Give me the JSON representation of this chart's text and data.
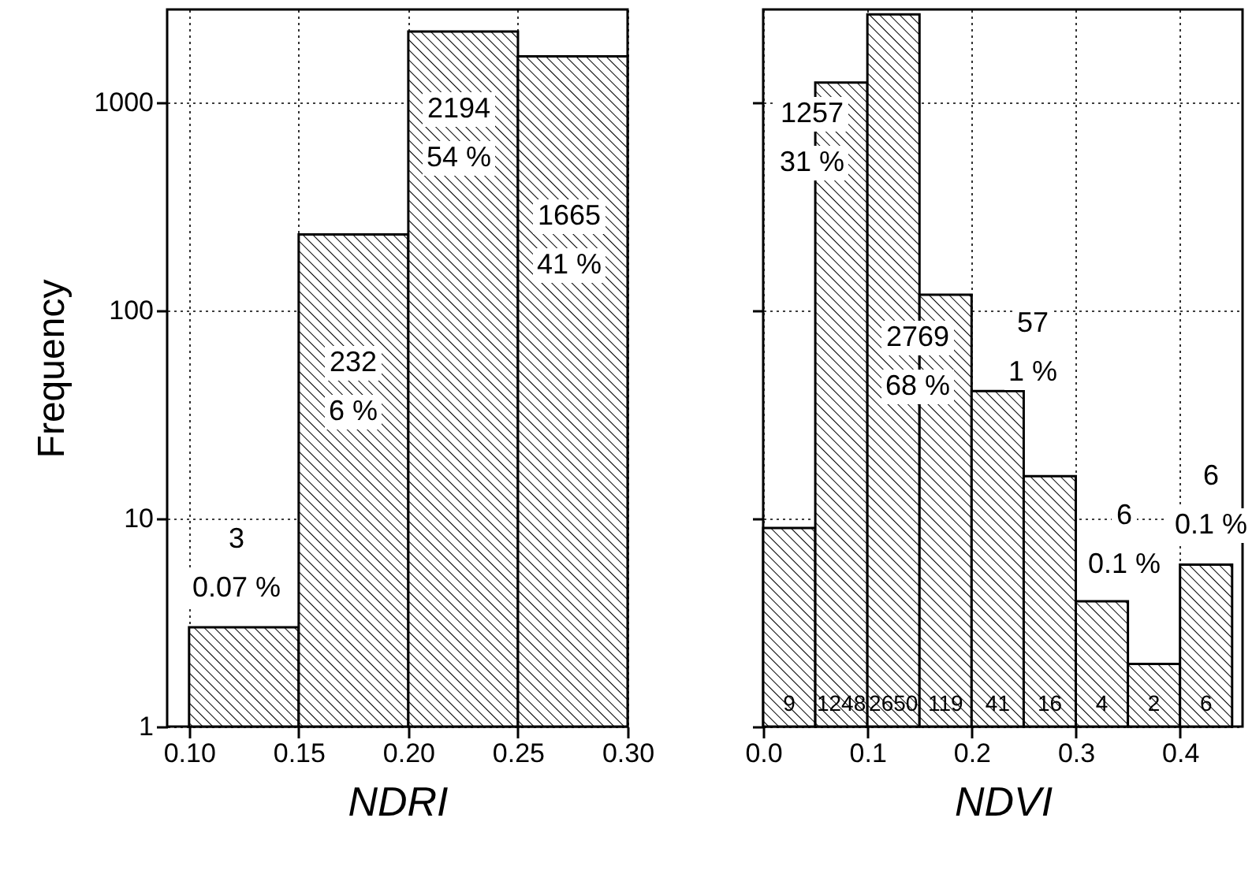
{
  "chart_data": [
    {
      "type": "histogram",
      "bins": [
        0.1,
        0.15,
        0.2,
        0.25,
        0.3
      ],
      "values": [
        3,
        232,
        2194,
        1665
      ],
      "xlim": [
        0.09,
        0.3
      ],
      "ylim": [
        1,
        2800
      ],
      "log": true,
      "grid": true,
      "xticks": [
        {
          "value": 0.1,
          "label": "0.10"
        },
        {
          "value": 0.15,
          "label": "0.15"
        },
        {
          "value": 0.2,
          "label": "0.20"
        },
        {
          "value": 0.25,
          "label": "0.25"
        },
        {
          "value": 0.3,
          "label": "0.30"
        }
      ],
      "yticks": [
        1,
        10,
        100,
        1000
      ],
      "xlabel": "NDRI",
      "ylabel": "Frequency",
      "annotations": [
        "3\n0.07 %",
        "232\n6 %",
        "2194\n54 %",
        "1665\n41 %"
      ]
    },
    {
      "type": "histogram",
      "bins": [
        0.0,
        0.05,
        0.1,
        0.15,
        0.2,
        0.25,
        0.3,
        0.35,
        0.4,
        0.45
      ],
      "values": [
        9,
        1248,
        2650,
        119,
        41,
        16,
        4,
        2,
        6
      ],
      "xlim": [
        0.0,
        0.46
      ],
      "ylim": [
        1,
        2800
      ],
      "log": true,
      "grid": true,
      "tick_labels": "x",
      "data_labels": true,
      "xticks": [
        {
          "value": 0.0,
          "label": "0.0"
        },
        {
          "value": 0.1,
          "label": "0.1"
        },
        {
          "value": 0.2,
          "label": "0.2"
        },
        {
          "value": 0.3,
          "label": "0.3"
        },
        {
          "value": 0.4,
          "label": "0.4"
        }
      ],
      "yticks": [
        1,
        10,
        100,
        1000
      ],
      "xlabel": "NDVI",
      "annotations": [
        "1257\n31 %",
        "2769\n68 %",
        "57\n1 %",
        "6\n0.1 %",
        "6\n0.1 %"
      ]
    }
  ]
}
